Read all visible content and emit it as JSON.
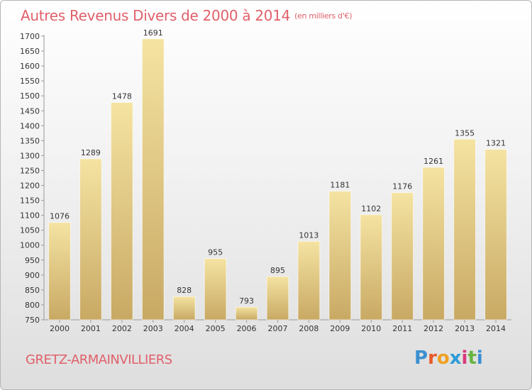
{
  "header": {
    "title": "Autres Revenus Divers de 2000 à 2014",
    "unit": "(en milliers d'€)"
  },
  "footer": {
    "town": "GRETZ-ARMAINVILLIERS",
    "logo_text": "Proxiti",
    "logo_colors": [
      "#3a8fd0",
      "#e8592b",
      "#f0a020",
      "#2e9bd6",
      "#d83a7a",
      "#67b640",
      "#3a8fd0"
    ]
  },
  "colors": {
    "bar_top": "#f5e3a2",
    "bar_bottom": "#c8a964",
    "text": "#333333",
    "axis": "#999999",
    "accent": "#e0606a"
  },
  "chart_data": {
    "type": "bar",
    "title": "Autres Revenus Divers de 2000 à 2014",
    "subtitle": "(en milliers d'€)",
    "categories": [
      "2000",
      "2001",
      "2002",
      "2003",
      "2004",
      "2005",
      "2006",
      "2007",
      "2008",
      "2009",
      "2010",
      "2011",
      "2012",
      "2013",
      "2014"
    ],
    "values": [
      1076,
      1289,
      1478,
      1691,
      828,
      955,
      793,
      895,
      1013,
      1181,
      1102,
      1176,
      1261,
      1355,
      1321
    ],
    "ylim": [
      750,
      1700
    ],
    "ytick_step": 50,
    "xlabel": "",
    "ylabel": "",
    "grid": false,
    "legend": "none"
  }
}
